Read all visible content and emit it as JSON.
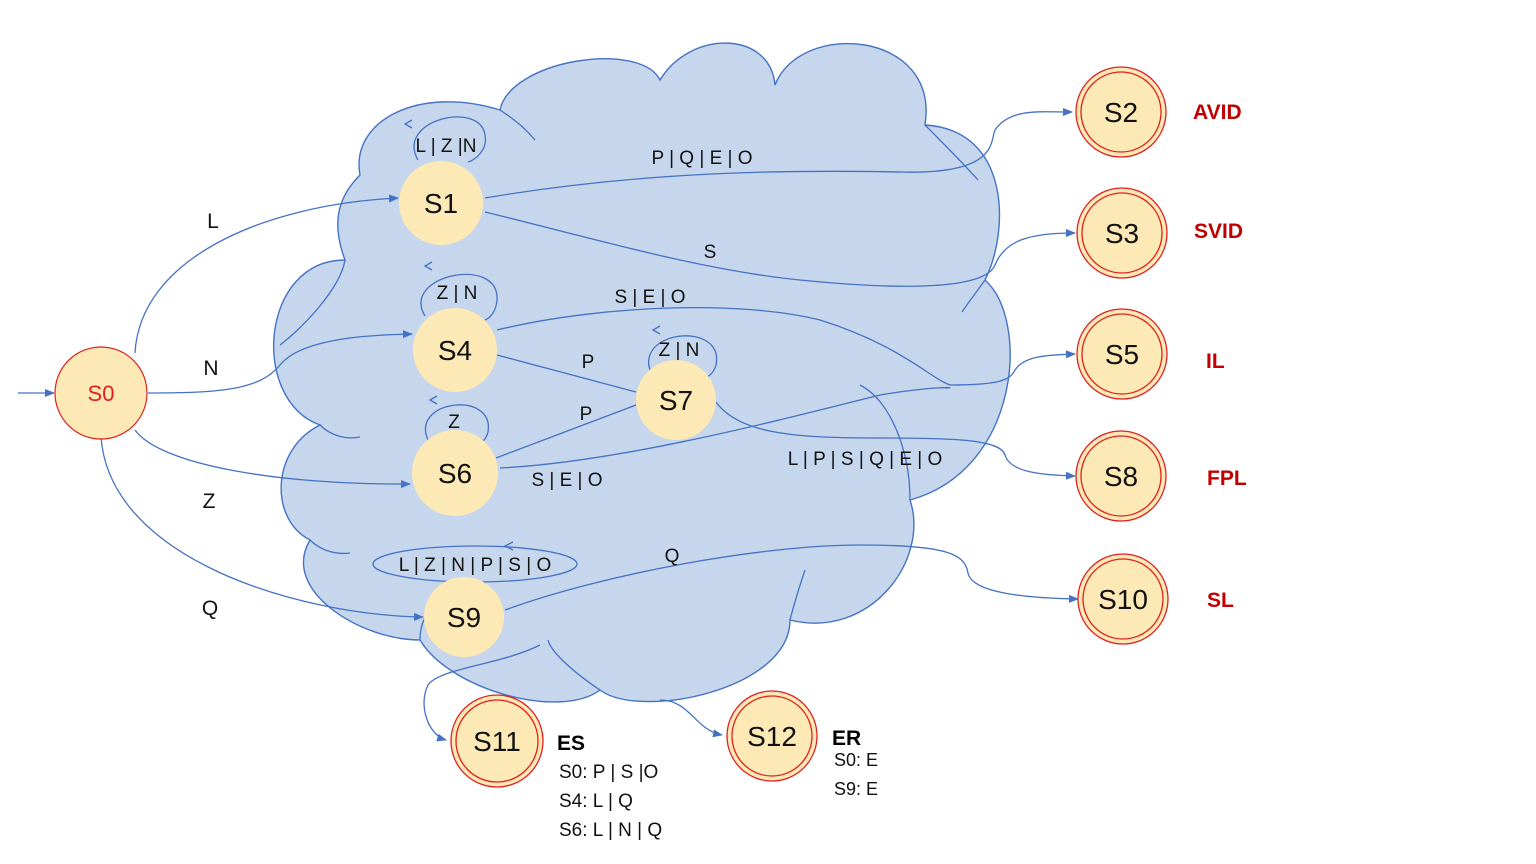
{
  "colors": {
    "cloud_fill": "#c6d6ec",
    "edge": "#4472c4",
    "node_fill": "#fde9b6",
    "start_node_stroke": "#e02020",
    "start_node_text": "#e02020",
    "final_node_stroke": "#e02020",
    "output_tag": "#c00000"
  },
  "nodes": {
    "s0": "S0",
    "s1": "S1",
    "s4": "S4",
    "s6": "S6",
    "s7": "S7",
    "s9": "S9",
    "s2": "S2",
    "s3": "S3",
    "s5": "S5",
    "s8": "S8",
    "s10": "S10",
    "s11": "S11",
    "s12": "S12"
  },
  "outputs": {
    "s2": "AVID",
    "s3": "SVID",
    "s5": "IL",
    "s8": "FPL",
    "s10": "SL"
  },
  "edge_labels": {
    "s0_s1": "L",
    "s0_s4": "N",
    "s0_s6": "Z",
    "s0_s9": "Q",
    "s1_loop": "L | Z |N",
    "s4_loop": "Z | N",
    "s6_loop": "Z",
    "s7_loop": "Z | N",
    "s9_loop": "L | Z | N | P | S | O",
    "s1_s2": "P | Q | E | O",
    "s1_s3": "S",
    "s4_s5": "S | E | O",
    "s4_s7": "P",
    "s6_s7": "P",
    "s6_s5": "S | E | O",
    "s7_s8": "L | P | S | Q | E | O",
    "s9_s10": "Q"
  },
  "legend": {
    "es_title": "ES",
    "es_lines": [
      "S0: P | S |O",
      "S4: L | Q",
      "S6: L | N | Q"
    ],
    "er_title": "ER",
    "er_lines": [
      "S0: E",
      "S9: E"
    ]
  }
}
